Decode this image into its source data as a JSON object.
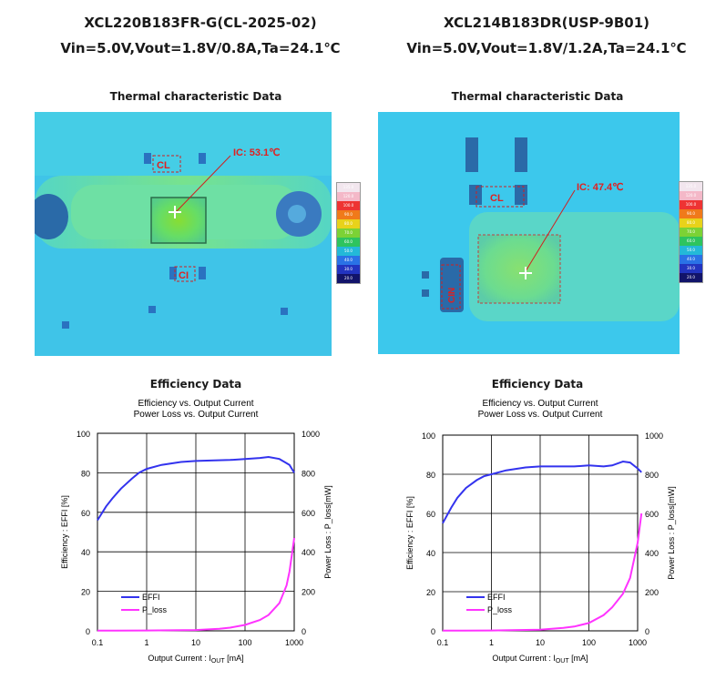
{
  "left": {
    "model": "XCL220B183FR-G(CL-2025-02)",
    "conditions": "Vin=5.0V,Vout=1.8V/0.8A,Ta=24.1℃",
    "thermal": {
      "title": "Thermal characteristic Data",
      "ic_label": "IC: 53.1℃",
      "cl_label": "CL",
      "ci_label": "CI"
    },
    "efficiency_title": "Efficiency Data"
  },
  "right": {
    "model": "XCL214B183DR(USP-9B01)",
    "conditions": "Vin=5.0V,Vout=1.8V/1.2A,Ta=24.1℃",
    "thermal": {
      "title": "Thermal characteristic Data",
      "ic_label": "IC: 47.4℃",
      "cl_label": "CL",
      "cin_label": "CIN"
    },
    "efficiency_title": "Efficiency Data"
  },
  "scale_labels": [
    "20.0",
    "30.0",
    "40.0",
    "50.0",
    "60.0",
    "70.0",
    "80.0",
    "90.0",
    "100.0",
    "120.0",
    "135.0"
  ],
  "colors": {
    "effi": "#3333ee",
    "ploss": "#ff33ff"
  },
  "chart_data": [
    {
      "type": "line",
      "subtitle": [
        "Efficiency vs. Output Current",
        "Power Loss vs. Output Current"
      ],
      "xlabel": "Output Current : I",
      "xlabel_sub": "OUT",
      "xlabel_unit": " [mA]",
      "xscale": "log",
      "xlim": [
        0.1,
        1000
      ],
      "xticks": [
        "0.1",
        "1",
        "10",
        "100",
        "1000"
      ],
      "ylabel": "Efficiency : EFFI [%]",
      "ylim": [
        0,
        100
      ],
      "yticks": [
        "0",
        "20",
        "40",
        "60",
        "80",
        "100"
      ],
      "y2label": "Power Loss : P_loss[mW]",
      "y2lim": [
        0,
        1000
      ],
      "y2ticks": [
        "0",
        "200",
        "400",
        "600",
        "800",
        "1000"
      ],
      "legend": [
        "EFFI",
        "P_loss"
      ],
      "series": [
        {
          "name": "EFFI",
          "axis": "left",
          "x": [
            0.1,
            0.15,
            0.2,
            0.3,
            0.5,
            0.7,
            1,
            2,
            5,
            10,
            20,
            50,
            100,
            200,
            300,
            500,
            800,
            1000
          ],
          "y": [
            56,
            63,
            67,
            72,
            77,
            80,
            82,
            84,
            85.5,
            86,
            86.2,
            86.5,
            87,
            87.5,
            88,
            87,
            84,
            80
          ]
        },
        {
          "name": "P_loss",
          "axis": "right",
          "x": [
            0.1,
            1,
            10,
            30,
            50,
            100,
            200,
            300,
            500,
            700,
            800,
            1000
          ],
          "y": [
            1,
            2,
            4,
            10,
            16,
            30,
            55,
            80,
            140,
            230,
            300,
            470
          ]
        }
      ]
    },
    {
      "type": "line",
      "subtitle": [
        "Efficiency vs. Output Current",
        "Power Loss vs. Output Current"
      ],
      "xlabel": "Output Current : I",
      "xlabel_sub": "OUT",
      "xlabel_unit": " [mA]",
      "xscale": "log",
      "xlim": [
        0.1,
        1200
      ],
      "xticks": [
        "0.1",
        "1",
        "10",
        "100",
        "1000"
      ],
      "ylabel": "Efficiency : EFFI [%]",
      "ylim": [
        0,
        100
      ],
      "yticks": [
        "0",
        "20",
        "40",
        "60",
        "80",
        "100"
      ],
      "y2label": "Power Loss : P_loss[mW]",
      "y2lim": [
        0,
        1000
      ],
      "y2ticks": [
        "0",
        "200",
        "400",
        "600",
        "800",
        "1000"
      ],
      "legend": [
        "EFFI",
        "P_loss"
      ],
      "series": [
        {
          "name": "EFFI",
          "axis": "left",
          "x": [
            0.1,
            0.15,
            0.2,
            0.3,
            0.5,
            0.7,
            1,
            2,
            5,
            10,
            20,
            50,
            100,
            200,
            300,
            500,
            700,
            1000,
            1200
          ],
          "y": [
            55,
            63,
            68,
            73,
            77,
            79,
            80,
            82,
            83.5,
            84,
            84,
            84,
            84.5,
            84,
            84.5,
            86.5,
            86,
            83,
            81
          ]
        },
        {
          "name": "P_loss",
          "axis": "right",
          "x": [
            0.1,
            1,
            10,
            30,
            50,
            100,
            200,
            300,
            500,
            700,
            1000,
            1200
          ],
          "y": [
            1,
            2,
            6,
            15,
            22,
            40,
            80,
            120,
            190,
            270,
            450,
            600
          ]
        }
      ]
    }
  ]
}
